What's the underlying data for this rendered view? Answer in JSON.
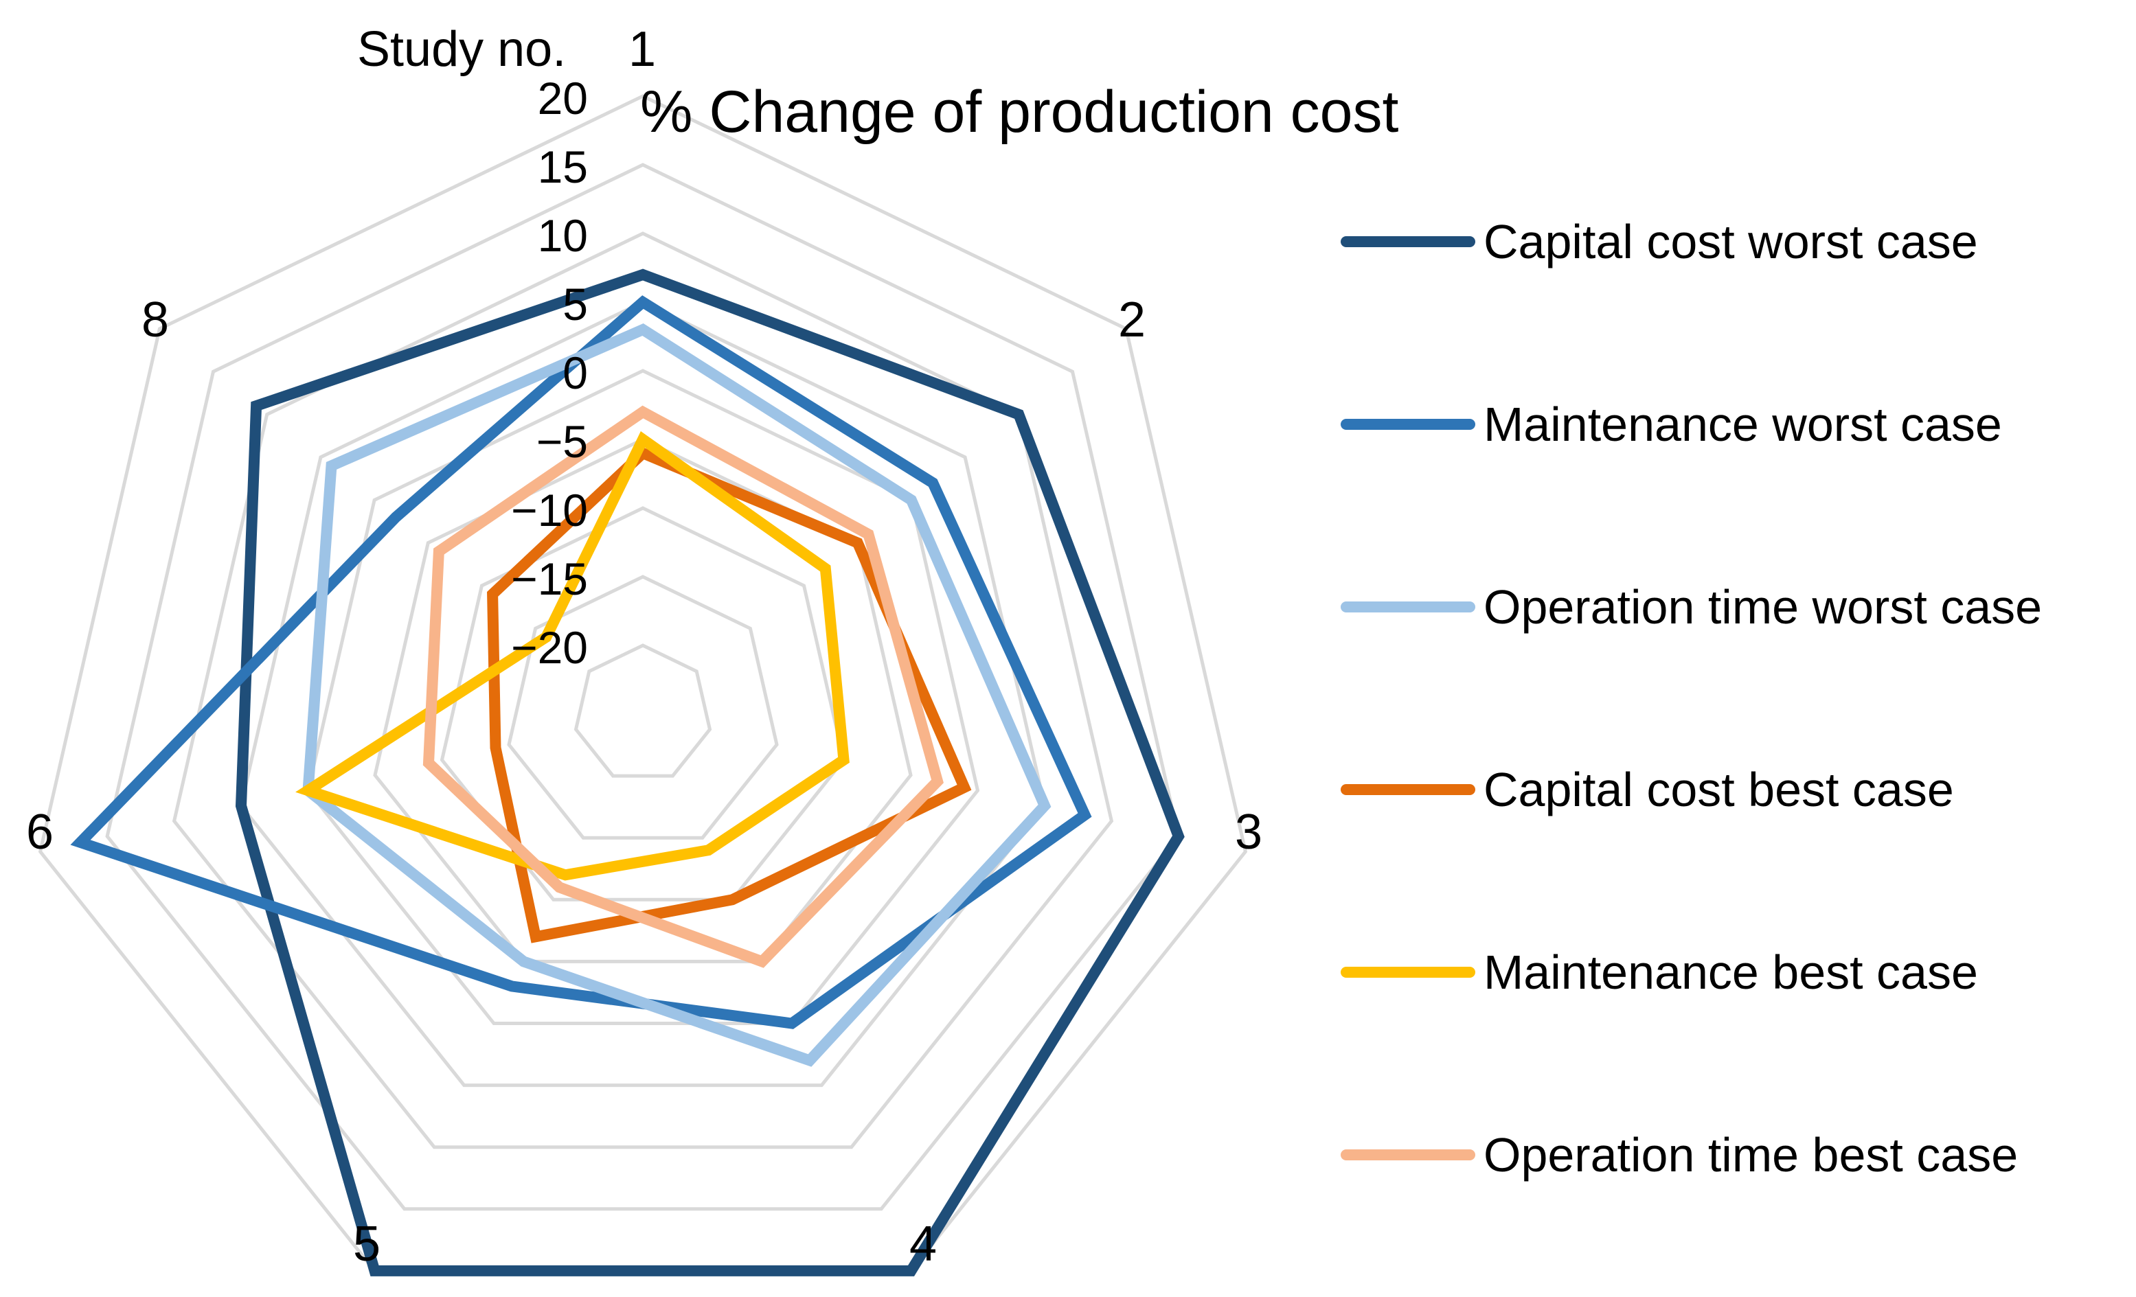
{
  "chart_data": {
    "type": "radar",
    "title": "% Change of production cost",
    "axis_title": "Study no.",
    "categories": [
      "1",
      "2",
      "3",
      "4",
      "5",
      "6",
      "8"
    ],
    "radial_ticks": [
      "20",
      "15",
      "10",
      "5",
      "0",
      "−5",
      "−10",
      "−15",
      "−20"
    ],
    "radial_tick_values": [
      20,
      15,
      10,
      5,
      0,
      -5,
      -10,
      -15,
      -20
    ],
    "rlim": [
      -25,
      20
    ],
    "grid": true,
    "legend_position": "right",
    "series": [
      {
        "name": "Capital cost worst case",
        "color": "#1f4e79",
        "values": [
          7,
          10,
          15,
          20,
          20,
          5,
          11
        ]
      },
      {
        "name": "Maintenance worst case",
        "color": "#2e75b6",
        "values": [
          5,
          2,
          8,
          0,
          -3,
          17,
          -2
        ]
      },
      {
        "name": "Operation time worst case",
        "color": "#9dc3e6",
        "values": [
          3,
          0,
          5,
          3,
          -5,
          0,
          4
        ]
      },
      {
        "name": "Capital cost best case",
        "color": "#e46c0a",
        "values": [
          -6,
          -5,
          -1,
          -10,
          -7,
          -14,
          -11
        ]
      },
      {
        "name": "Maintenance best case",
        "color": "#ffc000",
        "values": [
          -5,
          -8,
          -10,
          -14,
          -12,
          0,
          -16
        ]
      },
      {
        "name": "Operation time best case",
        "color": "#f8b48a",
        "values": [
          -3,
          -4,
          -3,
          -5,
          -11,
          -9,
          -6
        ]
      }
    ]
  }
}
